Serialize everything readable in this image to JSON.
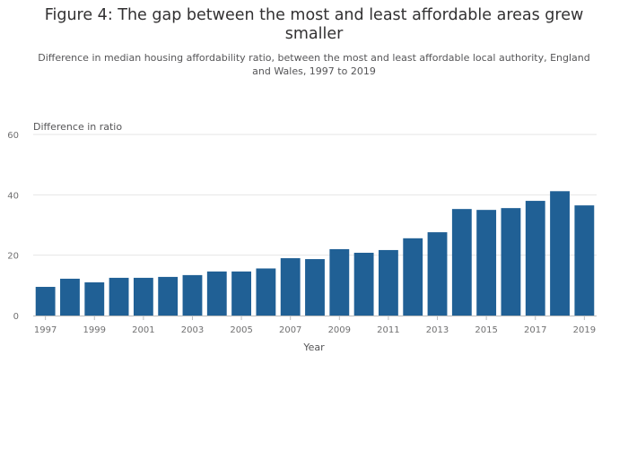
{
  "title": "Figure 4: The gap between the most and least affordable areas grew smaller",
  "subtitle": "Difference in median housing affordability ratio, between the most and least affordable local authority, England and Wales, 1997 to 2019",
  "colors": {
    "bar": "#206095",
    "grid": "#e6e6e6",
    "axis": "#bcbcbc",
    "tick_text": "#707071"
  },
  "chart_data": {
    "type": "bar",
    "title": "Figure 4: The gap between the most and least affordable areas grew smaller",
    "subtitle": "Difference in median housing affordability ratio, between the most and least affordable local authority, England and Wales, 1997 to 2019",
    "xlabel": "Year",
    "ylabel": "Difference in ratio",
    "ylim": [
      0,
      60
    ],
    "yticks": [
      0,
      20,
      40,
      60
    ],
    "grid": true,
    "legend": "none",
    "categories": [
      "1997",
      "1998",
      "1999",
      "2000",
      "2001",
      "2002",
      "2003",
      "2004",
      "2005",
      "2006",
      "2007",
      "2008",
      "2009",
      "2010",
      "2011",
      "2012",
      "2013",
      "2014",
      "2015",
      "2016",
      "2017",
      "2018",
      "2019"
    ],
    "xtick_labels": [
      "1997",
      "1999",
      "2001",
      "2003",
      "2005",
      "2007",
      "2009",
      "2011",
      "2013",
      "2015",
      "2017",
      "2019"
    ],
    "values": [
      9.5,
      12.2,
      11.0,
      12.5,
      12.5,
      12.8,
      13.4,
      14.6,
      14.6,
      15.6,
      19.0,
      18.7,
      22.0,
      20.8,
      21.7,
      25.6,
      27.6,
      35.3,
      35.0,
      35.6,
      38.0,
      41.2,
      36.5
    ]
  }
}
